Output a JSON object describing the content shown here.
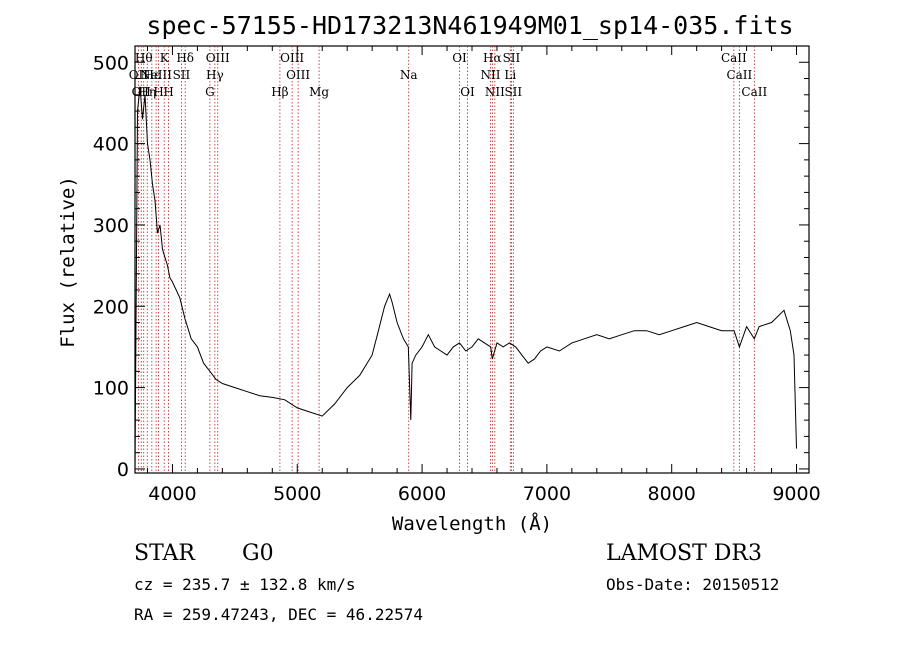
{
  "chart_data": {
    "type": "line",
    "title": "spec-57155-HD173213N461949M01_sp14-035.fits",
    "xlabel": "Wavelength (Å)",
    "ylabel": "Flux (relative)",
    "xlim": [
      3700,
      9100
    ],
    "ylim": [
      -5,
      520
    ],
    "x_ticks": [
      4000,
      5000,
      6000,
      7000,
      8000,
      9000
    ],
    "y_ticks": [
      0,
      100,
      200,
      300,
      400,
      500
    ],
    "line_color": "#000000",
    "marker_color": "#b22222",
    "series": [
      {
        "x": [
          3700,
          3720,
          3740,
          3760,
          3780,
          3800,
          3820,
          3840,
          3860,
          3880,
          3900,
          3920,
          3940,
          3960,
          3980,
          4000,
          4030,
          4060,
          4100,
          4150,
          4200,
          4250,
          4300,
          4350,
          4400,
          4500,
          4600,
          4700,
          4800,
          4900,
          5000,
          5100,
          5200,
          5300,
          5400,
          5500,
          5600,
          5650,
          5700,
          5740,
          5760,
          5800,
          5850,
          5890,
          5910,
          5920,
          5950,
          6000,
          6050,
          6100,
          6150,
          6200,
          6250,
          6300,
          6350,
          6400,
          6450,
          6500,
          6550,
          6563,
          6600,
          6650,
          6700,
          6750,
          6800,
          6850,
          6900,
          6950,
          7000,
          7100,
          7200,
          7300,
          7400,
          7500,
          7600,
          7700,
          7800,
          7900,
          8000,
          8100,
          8200,
          8300,
          8400,
          8500,
          8542,
          8600,
          8662,
          8700,
          8800,
          8900,
          8950,
          8980,
          9000
        ],
        "y": [
          0,
          440,
          470,
          430,
          460,
          400,
          380,
          350,
          330,
          290,
          300,
          270,
          260,
          250,
          235,
          230,
          220,
          210,
          185,
          160,
          150,
          130,
          120,
          110,
          105,
          100,
          95,
          90,
          88,
          85,
          75,
          70,
          65,
          80,
          100,
          115,
          140,
          170,
          200,
          215,
          205,
          180,
          160,
          150,
          60,
          130,
          140,
          150,
          165,
          150,
          145,
          140,
          150,
          155,
          145,
          150,
          160,
          155,
          150,
          135,
          155,
          150,
          155,
          150,
          140,
          130,
          135,
          145,
          150,
          145,
          155,
          160,
          165,
          160,
          165,
          170,
          170,
          165,
          170,
          175,
          180,
          175,
          170,
          170,
          150,
          175,
          160,
          175,
          180,
          195,
          170,
          140,
          25
        ]
      }
    ],
    "lines": [
      {
        "wave": 3727,
        "label": "OII",
        "row": 2
      },
      {
        "wave": 3750,
        "label": "OII",
        "row": 3
      },
      {
        "wave": 3770,
        "label": "Hθ",
        "row": 1
      },
      {
        "wave": 3798,
        "label": "Hη",
        "row": 3
      },
      {
        "wave": 3835,
        "label": "Hε",
        "row": 2
      },
      {
        "wave": 3869,
        "label": "NeIII",
        "row": 2
      },
      {
        "wave": 3889,
        "label": "H",
        "row": 3
      },
      {
        "wave": 3934,
        "label": "K",
        "row": 1
      },
      {
        "wave": 3969,
        "label": "H",
        "row": 3
      },
      {
        "wave": 4072,
        "label": "SII",
        "row": 2
      },
      {
        "wave": 4102,
        "label": "Hδ",
        "row": 1
      },
      {
        "wave": 4300,
        "label": "G",
        "row": 3
      },
      {
        "wave": 4340,
        "label": "Hγ",
        "row": 2
      },
      {
        "wave": 4363,
        "label": "OIII",
        "row": 1
      },
      {
        "wave": 4861,
        "label": "Hβ",
        "row": 3
      },
      {
        "wave": 4959,
        "label": "OIII",
        "row": 1
      },
      {
        "wave": 5007,
        "label": "OIII",
        "row": 2
      },
      {
        "wave": 5175,
        "label": "Mg",
        "row": 3
      },
      {
        "wave": 5893,
        "label": "Na",
        "row": 2
      },
      {
        "wave": 6300,
        "label": "OI",
        "row": 1
      },
      {
        "wave": 6364,
        "label": "OI",
        "row": 3
      },
      {
        "wave": 6548,
        "label": "NII",
        "row": 2
      },
      {
        "wave": 6563,
        "label": "Hα",
        "row": 1
      },
      {
        "wave": 6583,
        "label": "NII",
        "row": 3
      },
      {
        "wave": 6707,
        "label": "Li",
        "row": 2
      },
      {
        "wave": 6716,
        "label": "SII",
        "row": 1
      },
      {
        "wave": 6731,
        "label": "SII",
        "row": 3
      },
      {
        "wave": 8498,
        "label": "CaII",
        "row": 1
      },
      {
        "wave": 8542,
        "label": "CaII",
        "row": 2
      },
      {
        "wave": 8662,
        "label": "CaII",
        "row": 3
      }
    ]
  },
  "info": {
    "object_class": "STAR",
    "subclass": "G0",
    "survey": "LAMOST DR3",
    "cz": "cz = 235.7 ± 132.8 km/s",
    "obs_date": "Obs-Date: 20150512",
    "coords": "RA = 259.47243, DEC =  46.22574"
  }
}
